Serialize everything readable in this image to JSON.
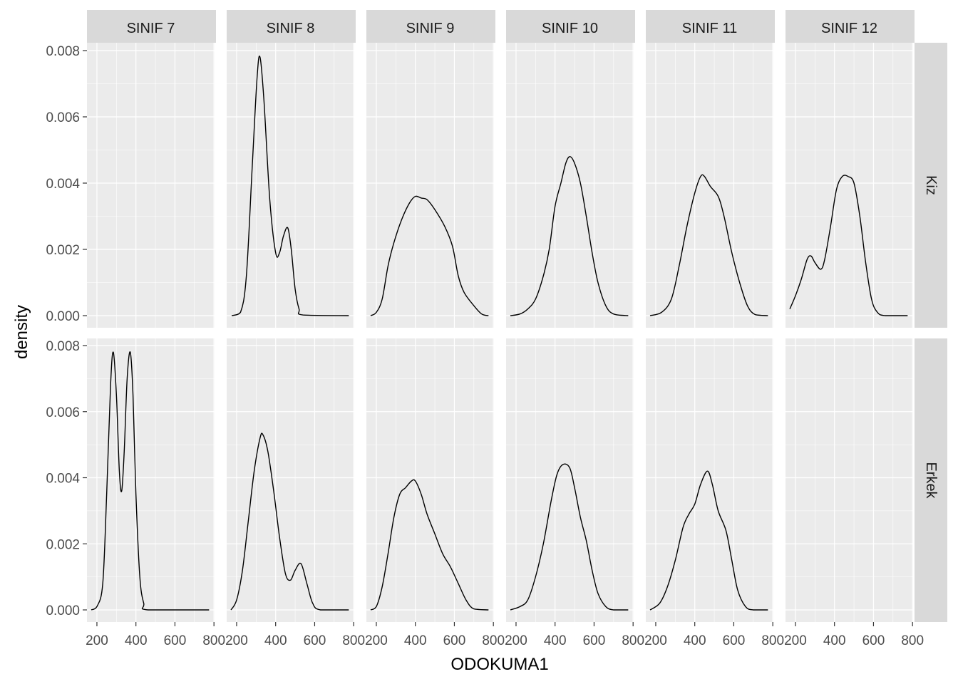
{
  "chart_data": {
    "type": "line",
    "xlabel": "ODOKUMA1",
    "ylabel": "density",
    "xlim": [
      149,
      803
    ],
    "ylim": [
      0,
      0.0083
    ],
    "x_ticks": [
      "200",
      "400",
      "600",
      "800"
    ],
    "y_ticks": [
      "0.000",
      "0.002",
      "0.004",
      "0.006",
      "0.008"
    ],
    "x_tick_values": [
      200,
      400,
      600,
      800
    ],
    "y_tick_values": [
      0,
      0.002,
      0.004,
      0.006,
      0.008
    ],
    "grid": true,
    "colors": {
      "panel": "#EBEBEB",
      "strip": "#D9D9D9",
      "line": "#000000",
      "grid": "#FFFFFF"
    },
    "columns": [
      "SINIF 7",
      "SINIF 8",
      "SINIF 9",
      "SINIF 10",
      "SINIF 11",
      "SINIF 12"
    ],
    "rows": [
      "Kiz",
      "Erkek"
    ],
    "panels": [
      [
        null,
        {
          "x": [
            175,
            220,
            250,
            280,
            305,
            320,
            340,
            370,
            400,
            420,
            440,
            462,
            480,
            500,
            520,
            540,
            775
          ],
          "y": [
            0,
            0.0001,
            0.0012,
            0.0045,
            0.0072,
            0.0078,
            0.0065,
            0.0035,
            0.0019,
            0.0019,
            0.0024,
            0.00265,
            0.002,
            0.0008,
            0.0002,
            2e-05,
            0
          ]
        },
        {
          "x": [
            171,
            200,
            230,
            260,
            290,
            330,
            370,
            400,
            430,
            460,
            500,
            550,
            590,
            620,
            650,
            700,
            740,
            775
          ],
          "y": [
            0,
            0.0001,
            0.0005,
            0.0015,
            0.0022,
            0.0029,
            0.0034,
            0.0036,
            0.00355,
            0.0035,
            0.0032,
            0.0027,
            0.0021,
            0.0012,
            0.0007,
            0.0003,
            5e-05,
            0
          ]
        },
        {
          "x": [
            171,
            220,
            260,
            300,
            340,
            370,
            400,
            430,
            455,
            476,
            500,
            530,
            560,
            590,
            620,
            660,
            700,
            775
          ],
          "y": [
            0,
            5e-05,
            0.0002,
            0.0005,
            0.0012,
            0.002,
            0.0033,
            0.004,
            0.0046,
            0.0048,
            0.0046,
            0.004,
            0.003,
            0.0019,
            0.001,
            0.0003,
            5e-05,
            0
          ]
        },
        {
          "x": [
            171,
            230,
            280,
            320,
            360,
            400,
            430,
            450,
            480,
            520,
            550,
            590,
            630,
            670,
            710,
            775
          ],
          "y": [
            0,
            0.0001,
            0.0005,
            0.0015,
            0.0027,
            0.0037,
            0.0042,
            0.0042,
            0.0039,
            0.0036,
            0.003,
            0.0019,
            0.001,
            0.0003,
            3e-05,
            0
          ]
        },
        {
          "x": [
            171,
            200,
            230,
            260,
            280,
            300,
            330,
            350,
            380,
            410,
            440,
            470,
            500,
            530,
            560,
            590,
            620,
            660,
            775
          ],
          "y": [
            0.0002,
            0.0006,
            0.0011,
            0.0017,
            0.0018,
            0.0016,
            0.0014,
            0.0017,
            0.0027,
            0.0038,
            0.0042,
            0.0042,
            0.004,
            0.003,
            0.0016,
            0.0005,
            0.0001,
            0,
            0
          ]
        }
      ],
      [
        {
          "x": [
            171,
            200,
            230,
            250,
            270,
            284,
            300,
            315,
            327,
            340,
            355,
            371,
            385,
            400,
            420,
            440,
            462,
            775
          ],
          "y": [
            0,
            0.0001,
            0.0008,
            0.0035,
            0.0068,
            0.0078,
            0.0065,
            0.0042,
            0.0036,
            0.0048,
            0.007,
            0.0078,
            0.0065,
            0.0035,
            0.001,
            0.0002,
            0,
            0
          ]
        },
        {
          "x": [
            171,
            200,
            230,
            260,
            290,
            320,
            335,
            360,
            390,
            420,
            450,
            476,
            500,
            530,
            560,
            590,
            630,
            775
          ],
          "y": [
            0,
            0.0003,
            0.0012,
            0.0027,
            0.0042,
            0.0052,
            0.0053,
            0.0048,
            0.0036,
            0.0022,
            0.0011,
            0.0009,
            0.0012,
            0.0014,
            0.0008,
            0.0002,
            0,
            0
          ]
        },
        {
          "x": [
            171,
            200,
            230,
            260,
            290,
            320,
            350,
            380,
            400,
            430,
            460,
            500,
            540,
            580,
            620,
            660,
            700,
            775
          ],
          "y": [
            0,
            0.0001,
            0.0007,
            0.0017,
            0.0028,
            0.0035,
            0.0037,
            0.0039,
            0.0039,
            0.0035,
            0.0029,
            0.0023,
            0.0017,
            0.0013,
            0.0008,
            0.0003,
            3e-05,
            0
          ]
        },
        {
          "x": [
            171,
            220,
            260,
            300,
            340,
            380,
            410,
            440,
            475,
            500,
            530,
            560,
            590,
            620,
            660,
            700,
            775
          ],
          "y": [
            0,
            0.0001,
            0.0003,
            0.001,
            0.002,
            0.0033,
            0.0041,
            0.0044,
            0.0043,
            0.0037,
            0.0028,
            0.0021,
            0.0012,
            0.0005,
            0.0001,
            0,
            0
          ]
        },
        {
          "x": [
            171,
            220,
            260,
            300,
            340,
            370,
            400,
            430,
            465,
            490,
            520,
            560,
            590,
            620,
            660,
            700,
            775
          ],
          "y": [
            0,
            0.0002,
            0.0007,
            0.0015,
            0.0025,
            0.0029,
            0.0032,
            0.0038,
            0.0042,
            0.0038,
            0.003,
            0.0024,
            0.0015,
            0.0006,
            0.0001,
            0,
            0
          ]
        },
        null
      ]
    ]
  }
}
